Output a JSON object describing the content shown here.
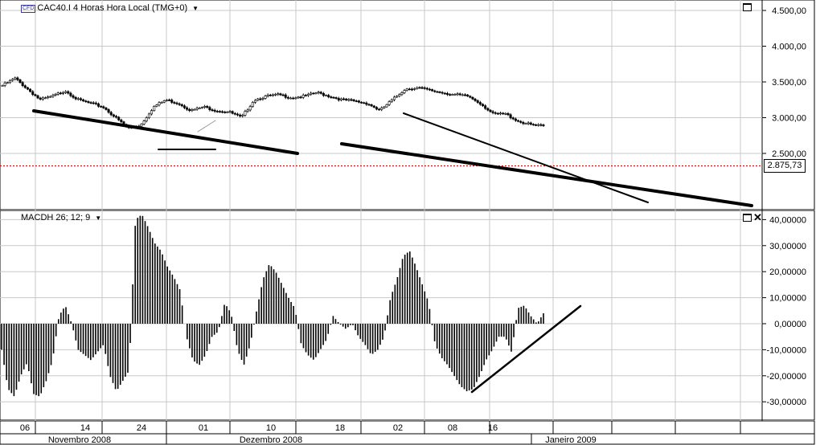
{
  "price_pane": {
    "badge": "CFD",
    "title": "CAC40.I 4 Horas Hora Local (TMG+0)",
    "dropdown_glyph": "▼",
    "axis_ticks": [
      "4.500,00",
      "4.000,00",
      "3.500,00",
      "3.000,00",
      "2.500,00"
    ],
    "current_price": "2.875,73"
  },
  "indicator_pane": {
    "title": "MACDH 26; 12; 9",
    "dropdown_glyph": "▼",
    "axis_ticks": [
      "40,00000",
      "30,00000",
      "20,00000",
      "10,00000",
      "0,00000",
      "-10,00000",
      "-20,00000",
      "-30,00000"
    ]
  },
  "time_axis": {
    "day_labels": [
      "06",
      "14",
      "24",
      "01",
      "10",
      "18",
      "02",
      "08",
      "16"
    ],
    "month_labels": [
      "Novembro 2008",
      "Dezembro 2008",
      "Janeiro 2009"
    ]
  },
  "chart_data": [
    {
      "type": "candlestick",
      "title": "CAC40.I 4 Horas Hora Local (TMG+0)",
      "y_axis_ticks": [
        4500,
        4000,
        3500,
        3000,
        2500
      ],
      "current_price": 2875.73,
      "approx_close": [
        3450,
        3550,
        3400,
        3250,
        3300,
        3380,
        3250,
        3200,
        3150,
        3000,
        2850,
        2900,
        3150,
        3250,
        3200,
        3100,
        3150,
        3100,
        3080,
        3000,
        3250,
        3300,
        3320,
        3280,
        3300,
        3350,
        3300,
        3250,
        3230,
        3200,
        3100,
        3250,
        3400,
        3420,
        3380,
        3350,
        3320,
        3300,
        3200,
        3050,
        3050,
        2950,
        2900,
        2880
      ],
      "colors": {
        "up": "#ffffff",
        "down": "#000000",
        "price_line": "#cc0000"
      }
    },
    {
      "type": "bar",
      "title": "MACDH 26; 12; 9",
      "y_axis_ticks": [
        40,
        30,
        20,
        10,
        0,
        -10,
        -20,
        -30
      ],
      "values": [
        -10,
        -25,
        -28,
        -20,
        -15,
        -27,
        -28,
        -22,
        -14,
        3,
        7,
        0,
        -10,
        -12,
        -14,
        -11,
        -8,
        -20,
        -26,
        -22,
        -18,
        40,
        42,
        37,
        31,
        28,
        22,
        18,
        13,
        -5,
        -14,
        -16,
        -12,
        -5,
        -3,
        8,
        4,
        -10,
        -16,
        -8,
        5,
        17,
        23,
        20,
        15,
        10,
        6,
        -8,
        -12,
        -14,
        -10,
        -6,
        3,
        0,
        -2,
        0,
        -5,
        -8,
        -12,
        -10,
        -5,
        10,
        17,
        26,
        28,
        22,
        15,
        8,
        -8,
        -13,
        -16,
        -20,
        -24,
        -26,
        -25,
        -20,
        -14,
        -10,
        -5,
        -5,
        -11,
        6,
        7,
        3,
        0,
        4
      ]
    }
  ]
}
